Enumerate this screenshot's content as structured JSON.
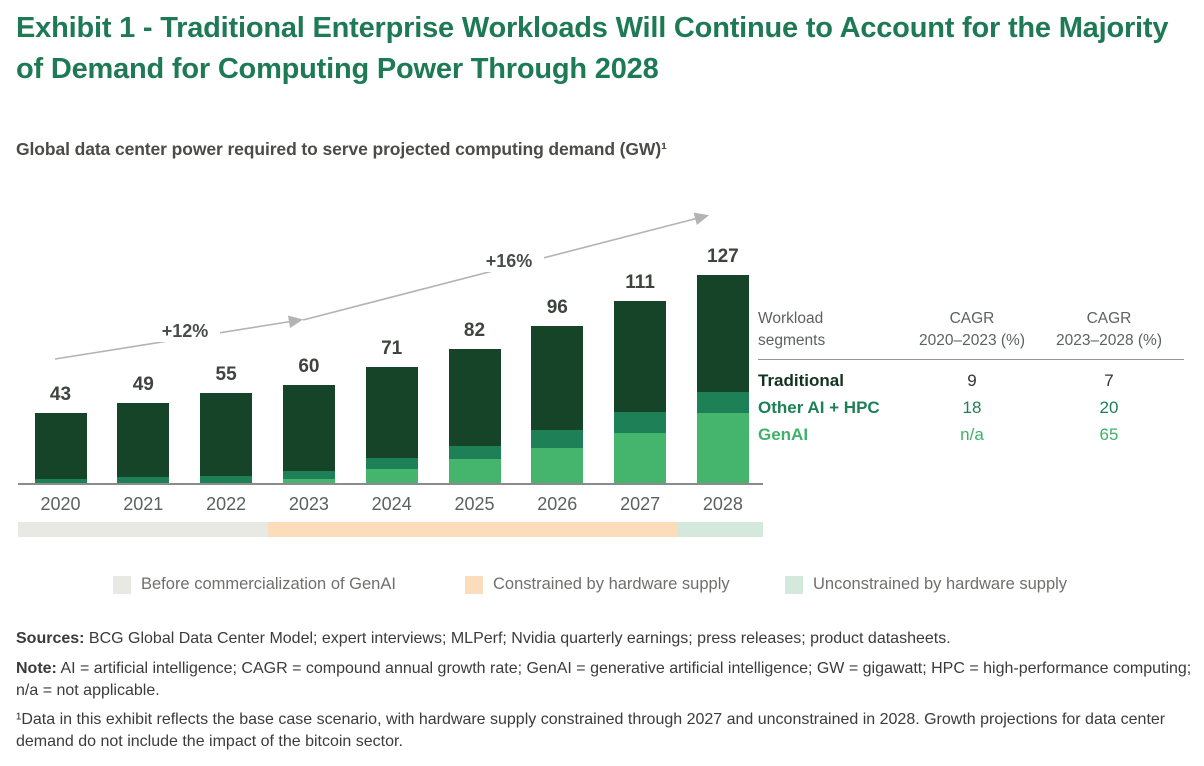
{
  "title": "Exhibit 1 - Traditional Enterprise Workloads Will Continue to Account for the Majority of Demand for Computing Power Through 2028",
  "subtitle": "Global data center power required to serve projected computing demand (GW)¹",
  "chart_data": {
    "type": "bar",
    "stacked": true,
    "title": "Global data center power required to serve projected computing demand (GW)",
    "unit": "GW",
    "categories": [
      "2020",
      "2021",
      "2022",
      "2023",
      "2024",
      "2025",
      "2026",
      "2027",
      "2028"
    ],
    "totals": [
      43,
      49,
      55,
      60,
      71,
      82,
      96,
      111,
      127
    ],
    "series": [
      {
        "name": "Traditional",
        "color": "#164428",
        "values": [
          40,
          45,
          50,
          52,
          55,
          59,
          63,
          67,
          71
        ]
      },
      {
        "name": "Other AI + HPC",
        "color": "#1e8057",
        "values": [
          3,
          4,
          5,
          5,
          7,
          8,
          11,
          13,
          13
        ]
      },
      {
        "name": "GenAI",
        "color": "#45b56d",
        "values": [
          0,
          0,
          0,
          3,
          9,
          15,
          22,
          31,
          43
        ]
      }
    ],
    "growth_annotations": [
      {
        "label": "+12%",
        "from": "2020",
        "to": "2023"
      },
      {
        "label": "+16%",
        "from": "2023",
        "to": "2028"
      }
    ],
    "ylim": [
      0,
      140
    ],
    "gridlines": false,
    "legend_position": "bottom"
  },
  "phase_strip": [
    {
      "label": "Before commercialization of GenAI",
      "color": "#e9e9e4",
      "years": "2020–2022",
      "width_pct": 33.5
    },
    {
      "label": "Constrained by hardware supply",
      "color": "#fbdcbb",
      "years": "2023–2027",
      "width_pct": 55.1
    },
    {
      "label": "Unconstrained by hardware supply",
      "color": "#d5e8dc",
      "years": "2028",
      "width_pct": 11.4
    }
  ],
  "table": {
    "headers": [
      {
        "line1": "Workload",
        "line2": "segments"
      },
      {
        "line1": "CAGR",
        "line2": "2020–2023 (%)"
      },
      {
        "line1": "CAGR",
        "line2": "2023–2028 (%)"
      }
    ],
    "rows": [
      {
        "label": "Traditional",
        "label_color": "#11331f",
        "value_color": "#2f3430",
        "cagr_2020_2023": "9",
        "cagr_2023_2028": "7"
      },
      {
        "label": "Other AI + HPC",
        "label_color": "#1e8057",
        "value_color": "#1e8057",
        "cagr_2020_2023": "18",
        "cagr_2023_2028": "20"
      },
      {
        "label": "GenAI",
        "label_color": "#3fb168",
        "value_color": "#3fb168",
        "cagr_2020_2023": "n/a",
        "cagr_2023_2028": "65"
      }
    ]
  },
  "footnotes": {
    "sources_label": "Sources:",
    "sources_text": " BCG Global Data Center Model; expert interviews; MLPerf; Nvidia quarterly earnings; press releases; product datasheets.",
    "note_label": "Note:",
    "note_text": " AI = artificial intelligence; CAGR = compound annual growth rate; GenAI = generative artificial intelligence; GW = gigawatt; HPC = high-performance computing; n/a = not applicable.",
    "footnote1": "¹Data in this exhibit reflects the base case scenario, with hardware supply constrained through 2027 and unconstrained in 2028. Growth projections for data center demand do not include the impact of the bitcoin sector."
  },
  "colors": {
    "title_green": "#1e7a55",
    "axis": "#8b8b8b",
    "arrow": "#b3b3b3",
    "value_label": "#3f4440",
    "year_label": "#5b615e"
  }
}
